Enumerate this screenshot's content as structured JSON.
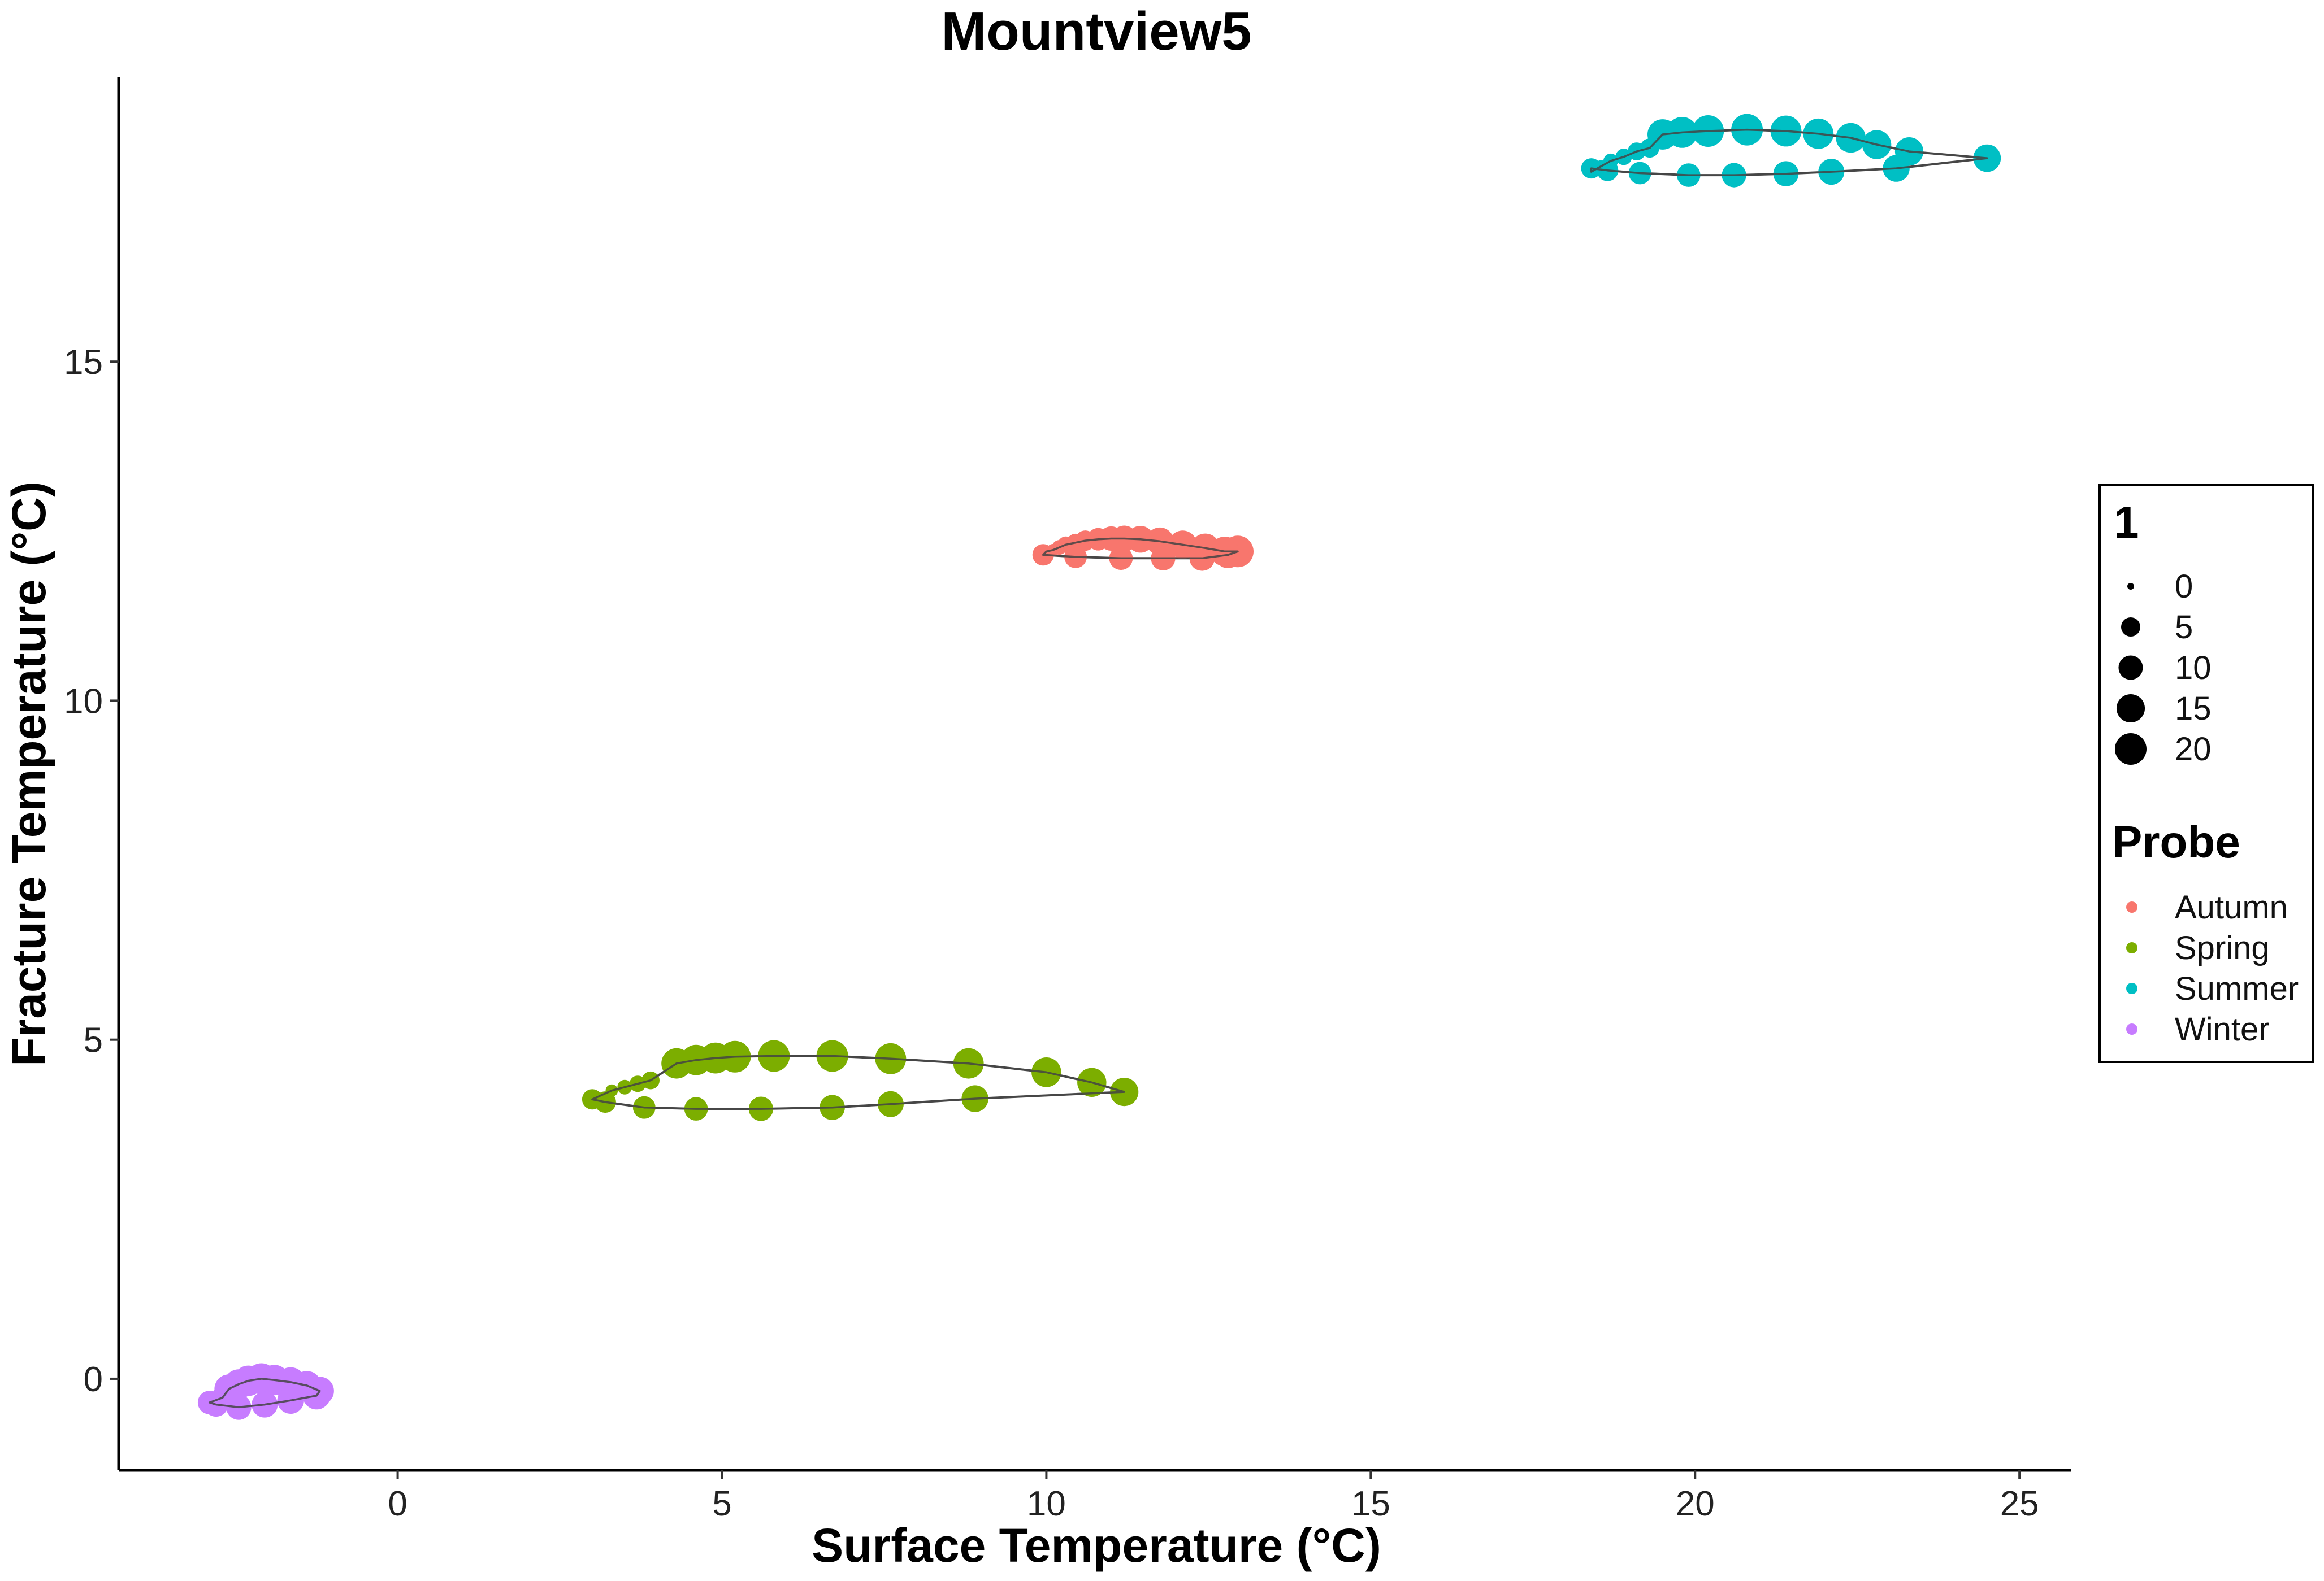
{
  "chart_data": {
    "type": "scatter",
    "title": "Mountview5",
    "xlabel": "Surface Temperature (°C)",
    "ylabel": "Fracture Temperature (°C)",
    "xlim": [
      -4.3,
      25.8
    ],
    "ylim": [
      -1.35,
      19.2
    ],
    "xticks": [
      0,
      5,
      10,
      15,
      20,
      25
    ],
    "yticks": [
      0,
      5,
      10,
      15
    ],
    "grid": false,
    "legend_position": "right",
    "size_legend": {
      "title": "1",
      "values": [
        0,
        5,
        10,
        15,
        20
      ]
    },
    "color_legend": {
      "title": "Probe"
    },
    "series": [
      {
        "name": "Autumn",
        "color": "#F8766D",
        "x": [
          10.0,
          10.1,
          10.2,
          10.3,
          10.45,
          10.6,
          10.8,
          11.0,
          11.2,
          11.45,
          11.75,
          12.1,
          12.45,
          12.75,
          12.95,
          12.8,
          12.4,
          11.8,
          11.15,
          10.45,
          9.95
        ],
        "y": [
          12.2,
          12.22,
          12.26,
          12.3,
          12.33,
          12.36,
          12.38,
          12.39,
          12.39,
          12.38,
          12.35,
          12.3,
          12.25,
          12.2,
          12.2,
          12.15,
          12.1,
          12.1,
          12.1,
          12.12,
          12.15
        ],
        "size": [
          0,
          1,
          2,
          3,
          4,
          6,
          8,
          10,
          12,
          13,
          14,
          15,
          16,
          17,
          20,
          13,
          11,
          10,
          9,
          8,
          7
        ]
      },
      {
        "name": "Spring",
        "color": "#7CAE00",
        "x": [
          3.3,
          3.5,
          3.7,
          3.9,
          4.3,
          4.6,
          4.9,
          5.2,
          5.8,
          6.7,
          7.6,
          8.8,
          10.0,
          10.7,
          11.2,
          8.9,
          7.6,
          6.7,
          5.6,
          4.6,
          3.8,
          3.2,
          3.0
        ],
        "y": [
          4.25,
          4.3,
          4.35,
          4.4,
          4.65,
          4.7,
          4.73,
          4.75,
          4.76,
          4.76,
          4.72,
          4.65,
          4.52,
          4.37,
          4.23,
          4.13,
          4.05,
          4.0,
          3.98,
          3.98,
          4.0,
          4.08,
          4.12
        ],
        "size": [
          1,
          2,
          3,
          4,
          18,
          18,
          19,
          20,
          20,
          20,
          19,
          18,
          17,
          16,
          15,
          13,
          12,
          11,
          10,
          9,
          8,
          7,
          6
        ]
      },
      {
        "name": "Summer",
        "color": "#00BFC4",
        "x": [
          18.4,
          18.55,
          18.7,
          18.9,
          19.1,
          19.3,
          19.5,
          19.8,
          20.2,
          20.8,
          21.4,
          21.9,
          22.4,
          22.8,
          23.3,
          24.5,
          23.1,
          22.1,
          21.4,
          20.6,
          19.9,
          19.15,
          18.65,
          18.4
        ],
        "y": [
          17.8,
          17.88,
          17.96,
          18.02,
          18.1,
          18.15,
          18.35,
          18.38,
          18.4,
          18.42,
          18.4,
          18.36,
          18.3,
          18.2,
          18.1,
          18.0,
          17.85,
          17.8,
          17.77,
          17.75,
          17.75,
          17.78,
          17.82,
          17.85
        ],
        "size": [
          0,
          1,
          2,
          3,
          4,
          5,
          18,
          19,
          20,
          20,
          19,
          18,
          17,
          16,
          15,
          14,
          13,
          12,
          11,
          10,
          9,
          8,
          7,
          6
        ]
      },
      {
        "name": "Winter",
        "color": "#C77CFF",
        "x": [
          -2.6,
          -2.45,
          -2.3,
          -2.1,
          -1.9,
          -1.65,
          -1.4,
          -1.2,
          -1.25,
          -1.65,
          -2.05,
          -2.45,
          -2.8,
          -2.9,
          -2.7
        ],
        "y": [
          -0.15,
          -0.08,
          -0.03,
          0.0,
          -0.02,
          -0.05,
          -0.1,
          -0.18,
          -0.25,
          -0.32,
          -0.38,
          -0.42,
          -0.38,
          -0.35,
          -0.28
        ],
        "size": [
          16,
          17,
          18,
          19,
          18,
          17,
          16,
          15,
          14,
          13,
          12,
          11,
          10,
          9,
          8
        ]
      }
    ]
  }
}
